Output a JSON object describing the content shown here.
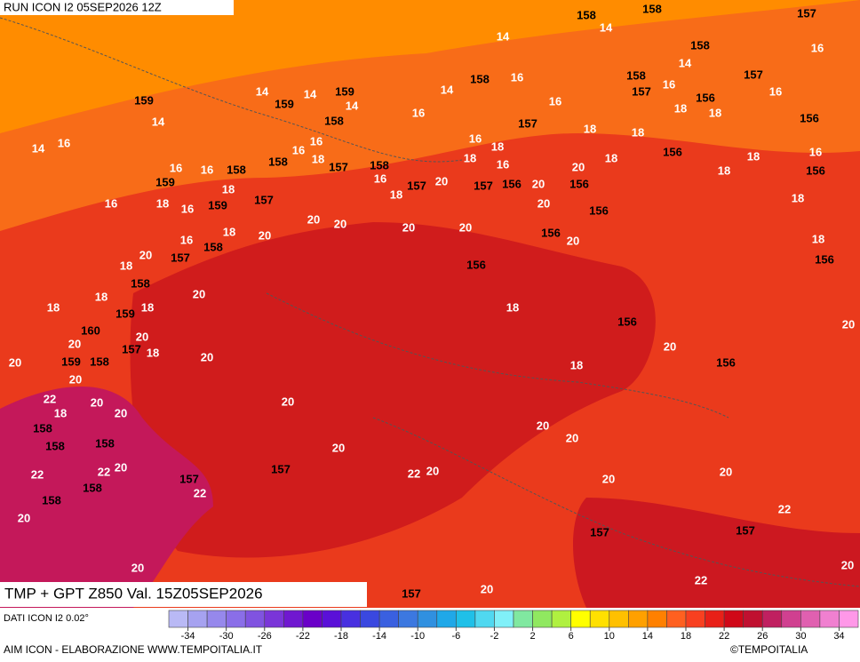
{
  "header": {
    "run": "RUN ICON I2 05SEP2026 12Z",
    "title": "TMP + GPT Z850 Val. 15Z05SEP2026",
    "source": "DATI ICON I2 0.02°",
    "credit": "AIM ICON - ELABORAZIONE WWW.TEMPOITALIA.IT",
    "brand": "©TEMPOITALIA"
  },
  "colorbar": {
    "range": [
      -36,
      36
    ],
    "ticks": [
      -34,
      -30,
      -26,
      -22,
      -18,
      -14,
      -10,
      -6,
      -2,
      2,
      6,
      10,
      14,
      18,
      22,
      26,
      30,
      34
    ],
    "colors": [
      "#b9b9f5",
      "#a6a2f0",
      "#9688ec",
      "#8a6ee8",
      "#8053e0",
      "#7a35d8",
      "#7018d0",
      "#6a00c8",
      "#5a10d8",
      "#4830e0",
      "#3a48e0",
      "#3a60e0",
      "#3c78e0",
      "#3090e0",
      "#20a8e8",
      "#20c0e8",
      "#50d8f0",
      "#80f0f8",
      "#80e8a0",
      "#90e860",
      "#b0f040",
      "#ffff00",
      "#ffe000",
      "#ffc000",
      "#ffa000",
      "#ff8000",
      "#ff6020",
      "#f84020",
      "#e82018",
      "#d00818",
      "#c01030",
      "#c02060",
      "#d04090",
      "#e060b0",
      "#f080d0",
      "#ff98e8"
    ]
  },
  "geopotential_labels": [
    158,
    158,
    157,
    158,
    157,
    158,
    157,
    156,
    159,
    159,
    159,
    158,
    158,
    157,
    156,
    156,
    156,
    158,
    158,
    157,
    158,
    157,
    157,
    156,
    156,
    156,
    159,
    159,
    157,
    156,
    156,
    158,
    157,
    158,
    159,
    160,
    157,
    159,
    158,
    156,
    156,
    158,
    158,
    158,
    158,
    158,
    157,
    157,
    157,
    157,
    157,
    156
  ],
  "temperature_labels": [
    14,
    14,
    16,
    14,
    16,
    16,
    16,
    14,
    14,
    14,
    14,
    14,
    16,
    16,
    18,
    18,
    16,
    14,
    16,
    16,
    18,
    16,
    18,
    18,
    18,
    18,
    16,
    20,
    18,
    18,
    18,
    16,
    16,
    16,
    16,
    18,
    20,
    20,
    20,
    18,
    18,
    16,
    16,
    18,
    20,
    20,
    20,
    20,
    20,
    18,
    16,
    20,
    18,
    18,
    20,
    20,
    18,
    18,
    18,
    18,
    20,
    20,
    18,
    20,
    20,
    20,
    20,
    18,
    20,
    22,
    18,
    20,
    20,
    20,
    20,
    20,
    20,
    22,
    22,
    22,
    22,
    20,
    20,
    20,
    20,
    22,
    20,
    22,
    20,
    20,
    20
  ]
}
